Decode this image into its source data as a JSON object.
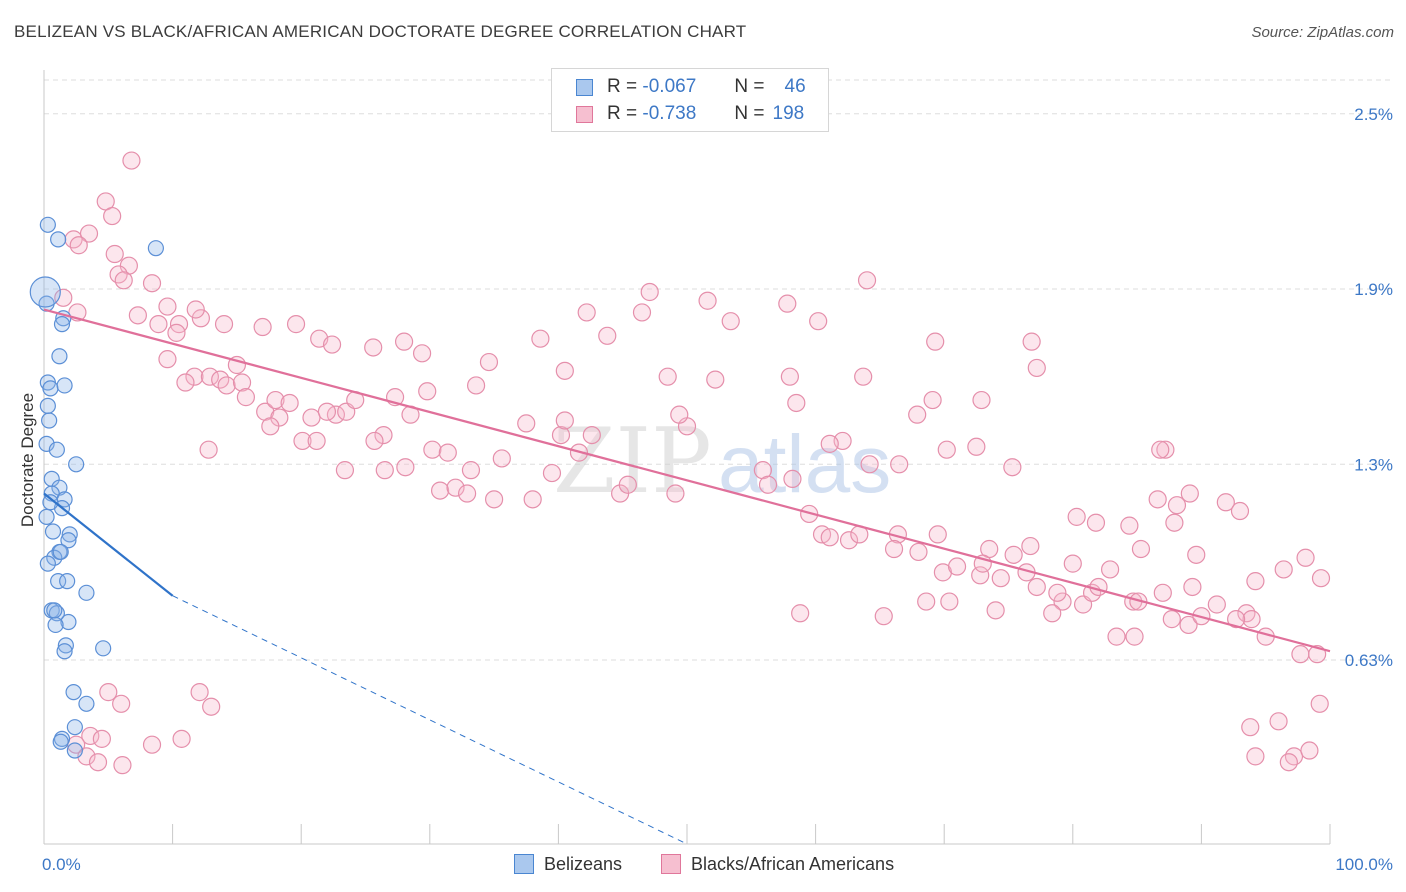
{
  "header": {
    "title": "BELIZEAN VS BLACK/AFRICAN AMERICAN DOCTORATE DEGREE CORRELATION CHART",
    "source": "Source: ZipAtlas.com"
  },
  "watermark": {
    "zip": "ZIP",
    "atlas": "atlas"
  },
  "legend": {
    "r_label": "R =",
    "n_label": "N =",
    "rows": [
      {
        "r": "-0.067",
        "n": "46",
        "color": "#4a86d1",
        "fill": "#aac8ee"
      },
      {
        "r": "-0.738",
        "n": "198",
        "color": "#e0779b",
        "fill": "#f6bfd0"
      }
    ]
  },
  "bottom_legend": [
    "Belizeans",
    "Blacks/African Americans"
  ],
  "colors": {
    "blue_stroke": "#5b8fd6",
    "blue_fill": "rgba(140,180,232,0.35)",
    "blue_line": "#2f73c9",
    "pink_stroke": "#e58fab",
    "pink_fill": "rgba(246,184,204,0.35)",
    "pink_line": "#e0709a",
    "grid": "#dddddd",
    "axis_text": "#3d78c6"
  },
  "chart_data": {
    "type": "scatter",
    "ylabel": "Doctorate Degree",
    "xlabel": "",
    "xlim": [
      0,
      100
    ],
    "ylim": [
      0,
      2.65
    ],
    "x_tick_labels": {
      "min": "0.0%",
      "max": "100.0%"
    },
    "y_ticks": [
      {
        "value": 2.5,
        "label": "2.5%"
      },
      {
        "value": 1.9,
        "label": "1.9%"
      },
      {
        "value": 1.3,
        "label": "1.3%"
      },
      {
        "value": 0.63,
        "label": "0.63%"
      }
    ],
    "series": [
      {
        "name": "Belizeans",
        "trend": {
          "x0": 0,
          "y0": 1.2,
          "x1": 10,
          "y1": 0.85,
          "dashed_to_x": 50,
          "dashed_to_y": 0.0
        },
        "points": [
          [
            0.3,
            2.12
          ],
          [
            1.1,
            2.07
          ],
          [
            8.7,
            2.04
          ],
          [
            0.2,
            1.85
          ],
          [
            1.5,
            1.8
          ],
          [
            1.4,
            1.78
          ],
          [
            1.2,
            1.67
          ],
          [
            0.3,
            1.58
          ],
          [
            0.5,
            1.56
          ],
          [
            1.6,
            1.57
          ],
          [
            0.3,
            1.5
          ],
          [
            0.4,
            1.45
          ],
          [
            0.2,
            1.37
          ],
          [
            1.0,
            1.35
          ],
          [
            2.5,
            1.3
          ],
          [
            0.6,
            1.25
          ],
          [
            1.2,
            1.22
          ],
          [
            0.6,
            1.2
          ],
          [
            1.6,
            1.18
          ],
          [
            1.4,
            1.15
          ],
          [
            0.2,
            1.12
          ],
          [
            0.7,
            1.07
          ],
          [
            2.0,
            1.06
          ],
          [
            1.9,
            1.04
          ],
          [
            1.2,
            1.0
          ],
          [
            0.8,
            0.98
          ],
          [
            1.3,
            1.0
          ],
          [
            1.1,
            0.9
          ],
          [
            1.8,
            0.9
          ],
          [
            3.3,
            0.86
          ],
          [
            0.6,
            0.8
          ],
          [
            1.0,
            0.79
          ],
          [
            1.9,
            0.76
          ],
          [
            0.9,
            0.75
          ],
          [
            1.7,
            0.68
          ],
          [
            1.6,
            0.66
          ],
          [
            4.6,
            0.67
          ],
          [
            2.3,
            0.52
          ],
          [
            3.3,
            0.48
          ],
          [
            2.4,
            0.4
          ],
          [
            1.4,
            0.36
          ],
          [
            1.3,
            0.35
          ],
          [
            2.4,
            0.32
          ],
          [
            0.8,
            0.8
          ],
          [
            0.5,
            1.17
          ],
          [
            0.3,
            0.96
          ]
        ]
      },
      {
        "name": "Blacks/African Americans",
        "trend": {
          "x0": 0,
          "y0": 1.83,
          "x1": 100,
          "y1": 0.66
        },
        "points": [
          [
            4.8,
            2.2
          ],
          [
            6.8,
            2.34
          ],
          [
            2.3,
            2.07
          ],
          [
            5.3,
            2.15
          ],
          [
            3.5,
            2.09
          ],
          [
            2.7,
            2.05
          ],
          [
            5.5,
            2.02
          ],
          [
            6.6,
            1.98
          ],
          [
            5.8,
            1.95
          ],
          [
            6.2,
            1.93
          ],
          [
            8.4,
            1.92
          ],
          [
            1.5,
            1.87
          ],
          [
            2.6,
            1.82
          ],
          [
            7.3,
            1.81
          ],
          [
            9.6,
            1.84
          ],
          [
            12.2,
            1.8
          ],
          [
            11.8,
            1.83
          ],
          [
            8.9,
            1.78
          ],
          [
            10.5,
            1.78
          ],
          [
            14.0,
            1.78
          ],
          [
            17.0,
            1.77
          ],
          [
            19.6,
            1.78
          ],
          [
            21.4,
            1.73
          ],
          [
            22.4,
            1.71
          ],
          [
            25.6,
            1.7
          ],
          [
            28.0,
            1.72
          ],
          [
            29.4,
            1.68
          ],
          [
            10.3,
            1.75
          ],
          [
            11.7,
            1.6
          ],
          [
            9.6,
            1.66
          ],
          [
            11.0,
            1.58
          ],
          [
            12.9,
            1.6
          ],
          [
            13.7,
            1.59
          ],
          [
            14.2,
            1.57
          ],
          [
            15.4,
            1.58
          ],
          [
            15.7,
            1.53
          ],
          [
            17.2,
            1.48
          ],
          [
            18.0,
            1.52
          ],
          [
            18.3,
            1.46
          ],
          [
            19.1,
            1.51
          ],
          [
            20.8,
            1.46
          ],
          [
            22.7,
            1.47
          ],
          [
            23.5,
            1.48
          ],
          [
            26.4,
            1.4
          ],
          [
            24.2,
            1.52
          ],
          [
            25.7,
            1.38
          ],
          [
            27.3,
            1.53
          ],
          [
            28.5,
            1.47
          ],
          [
            29.8,
            1.55
          ],
          [
            15.0,
            1.64
          ],
          [
            12.8,
            1.35
          ],
          [
            17.6,
            1.43
          ],
          [
            20.1,
            1.38
          ],
          [
            21.2,
            1.38
          ],
          [
            22.0,
            1.48
          ],
          [
            23.4,
            1.28
          ],
          [
            26.5,
            1.28
          ],
          [
            28.1,
            1.29
          ],
          [
            30.2,
            1.35
          ],
          [
            31.4,
            1.34
          ],
          [
            30.8,
            1.21
          ],
          [
            32.0,
            1.22
          ],
          [
            32.9,
            1.2
          ],
          [
            35.0,
            1.18
          ],
          [
            33.2,
            1.28
          ],
          [
            35.6,
            1.32
          ],
          [
            37.5,
            1.44
          ],
          [
            38.0,
            1.18
          ],
          [
            41.6,
            1.34
          ],
          [
            42.6,
            1.4
          ],
          [
            40.2,
            1.4
          ],
          [
            39.5,
            1.27
          ],
          [
            40.5,
            1.45
          ],
          [
            44.8,
            1.2
          ],
          [
            45.4,
            1.23
          ],
          [
            49.1,
            1.2
          ],
          [
            55.9,
            1.28
          ],
          [
            56.3,
            1.23
          ],
          [
            58.2,
            1.25
          ],
          [
            62.1,
            1.38
          ],
          [
            64.2,
            1.3
          ],
          [
            66.5,
            1.3
          ],
          [
            33.6,
            1.57
          ],
          [
            34.6,
            1.65
          ],
          [
            38.6,
            1.73
          ],
          [
            42.2,
            1.82
          ],
          [
            43.8,
            1.74
          ],
          [
            40.5,
            1.62
          ],
          [
            46.5,
            1.82
          ],
          [
            48.5,
            1.6
          ],
          [
            47.1,
            1.89
          ],
          [
            50.0,
            1.43
          ],
          [
            49.4,
            1.47
          ],
          [
            52.2,
            1.59
          ],
          [
            53.4,
            1.79
          ],
          [
            51.6,
            1.86
          ],
          [
            57.8,
            1.85
          ],
          [
            60.2,
            1.79
          ],
          [
            61.1,
            1.37
          ],
          [
            58.0,
            1.6
          ],
          [
            58.5,
            1.51
          ],
          [
            64.0,
            1.93
          ],
          [
            63.7,
            1.6
          ],
          [
            69.3,
            1.72
          ],
          [
            67.9,
            1.47
          ],
          [
            69.1,
            1.52
          ],
          [
            70.2,
            1.35
          ],
          [
            72.5,
            1.36
          ],
          [
            75.3,
            1.29
          ],
          [
            76.8,
            1.72
          ],
          [
            77.2,
            1.63
          ],
          [
            72.9,
            1.52
          ],
          [
            80.3,
            1.12
          ],
          [
            81.8,
            1.1
          ],
          [
            86.6,
            1.18
          ],
          [
            87.2,
            1.35
          ],
          [
            86.8,
            1.35
          ],
          [
            84.4,
            1.09
          ],
          [
            88.1,
            1.16
          ],
          [
            89.1,
            1.2
          ],
          [
            91.9,
            1.17
          ],
          [
            93.0,
            1.14
          ],
          [
            89.6,
            0.99
          ],
          [
            87.9,
            1.1
          ],
          [
            85.3,
            1.01
          ],
          [
            82.9,
            0.94
          ],
          [
            80.0,
            0.96
          ],
          [
            76.7,
            1.02
          ],
          [
            75.4,
            0.99
          ],
          [
            73.5,
            1.01
          ],
          [
            69.5,
            1.06
          ],
          [
            68.0,
            1.0
          ],
          [
            69.9,
            0.93
          ],
          [
            71.0,
            0.95
          ],
          [
            72.8,
            0.92
          ],
          [
            73.0,
            0.96
          ],
          [
            74.4,
            0.91
          ],
          [
            76.4,
            0.93
          ],
          [
            77.2,
            0.88
          ],
          [
            79.2,
            0.83
          ],
          [
            78.8,
            0.86
          ],
          [
            80.8,
            0.82
          ],
          [
            81.5,
            0.86
          ],
          [
            82.0,
            0.88
          ],
          [
            84.7,
            0.83
          ],
          [
            85.1,
            0.83
          ],
          [
            87.0,
            0.86
          ],
          [
            89.3,
            0.88
          ],
          [
            91.2,
            0.82
          ],
          [
            93.5,
            0.79
          ],
          [
            93.9,
            0.77
          ],
          [
            94.2,
            0.9
          ],
          [
            96.4,
            0.94
          ],
          [
            98.1,
            0.98
          ],
          [
            99.3,
            0.91
          ],
          [
            59.5,
            1.13
          ],
          [
            60.5,
            1.06
          ],
          [
            61.1,
            1.05
          ],
          [
            62.6,
            1.04
          ],
          [
            63.4,
            1.06
          ],
          [
            66.4,
            1.06
          ],
          [
            66.1,
            1.01
          ],
          [
            58.8,
            0.79
          ],
          [
            65.3,
            0.78
          ],
          [
            68.6,
            0.83
          ],
          [
            70.4,
            0.83
          ],
          [
            74.0,
            0.8
          ],
          [
            78.4,
            0.79
          ],
          [
            83.4,
            0.71
          ],
          [
            84.8,
            0.71
          ],
          [
            87.7,
            0.77
          ],
          [
            89.0,
            0.75
          ],
          [
            90.0,
            0.78
          ],
          [
            92.7,
            0.77
          ],
          [
            95.0,
            0.71
          ],
          [
            97.7,
            0.65
          ],
          [
            99.0,
            0.65
          ],
          [
            99.2,
            0.48
          ],
          [
            96.0,
            0.42
          ],
          [
            93.8,
            0.4
          ],
          [
            94.2,
            0.3
          ],
          [
            97.2,
            0.3
          ],
          [
            98.4,
            0.32
          ],
          [
            96.8,
            0.28
          ],
          [
            12.1,
            0.52
          ],
          [
            13.0,
            0.47
          ],
          [
            5.0,
            0.52
          ],
          [
            6.0,
            0.48
          ],
          [
            3.6,
            0.37
          ],
          [
            4.5,
            0.36
          ],
          [
            2.5,
            0.34
          ],
          [
            3.3,
            0.3
          ],
          [
            4.2,
            0.28
          ],
          [
            6.1,
            0.27
          ],
          [
            8.4,
            0.34
          ],
          [
            10.7,
            0.36
          ]
        ]
      }
    ]
  }
}
